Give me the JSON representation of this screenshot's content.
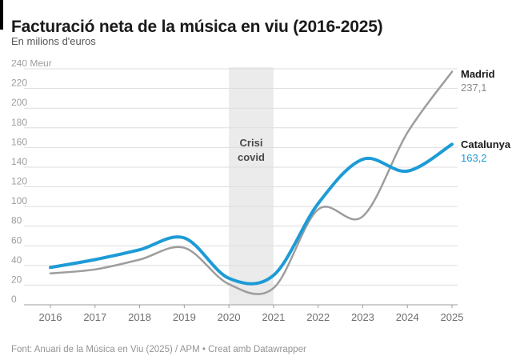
{
  "header": {
    "title": "Facturació neta de la música en viu (2016-2025)",
    "subtitle": "En milions d'euros"
  },
  "footer": {
    "text": "Font: Anuari de la Música en Viu (2025) / APM • Creat amb Datawrapper"
  },
  "chart_data": {
    "type": "line",
    "title": "Facturació neta de la música en viu (2016-2025)",
    "subtitle": "En milions d'euros",
    "x": [
      2016,
      2017,
      2018,
      2019,
      2020,
      2021,
      2022,
      2023,
      2024,
      2025
    ],
    "series": [
      {
        "name": "Madrid",
        "color": "#9d9d9d",
        "stroke_width": 2.5,
        "values": [
          32,
          36,
          46,
          58,
          21,
          17,
          97,
          90,
          175,
          237.1
        ],
        "end_label": "237,1",
        "end_label_color": "#8a8a8a"
      },
      {
        "name": "Catalunya",
        "color": "#1d9bd6",
        "stroke_width": 4,
        "values": [
          38,
          46,
          56,
          68,
          27,
          30,
          103,
          148,
          136,
          163.2
        ],
        "end_label": "163,2",
        "end_label_color": "#1d9bd6"
      }
    ],
    "ylim": [
      0,
      240
    ],
    "ytick_step": 20,
    "ytick_top_label": "240 Meur",
    "grid": true,
    "legend_position": "right-of-line-ends",
    "annotation": {
      "text": "Crisi covid",
      "x_from": 2020,
      "x_to": 2021,
      "band_color": "#ebebeb"
    }
  }
}
